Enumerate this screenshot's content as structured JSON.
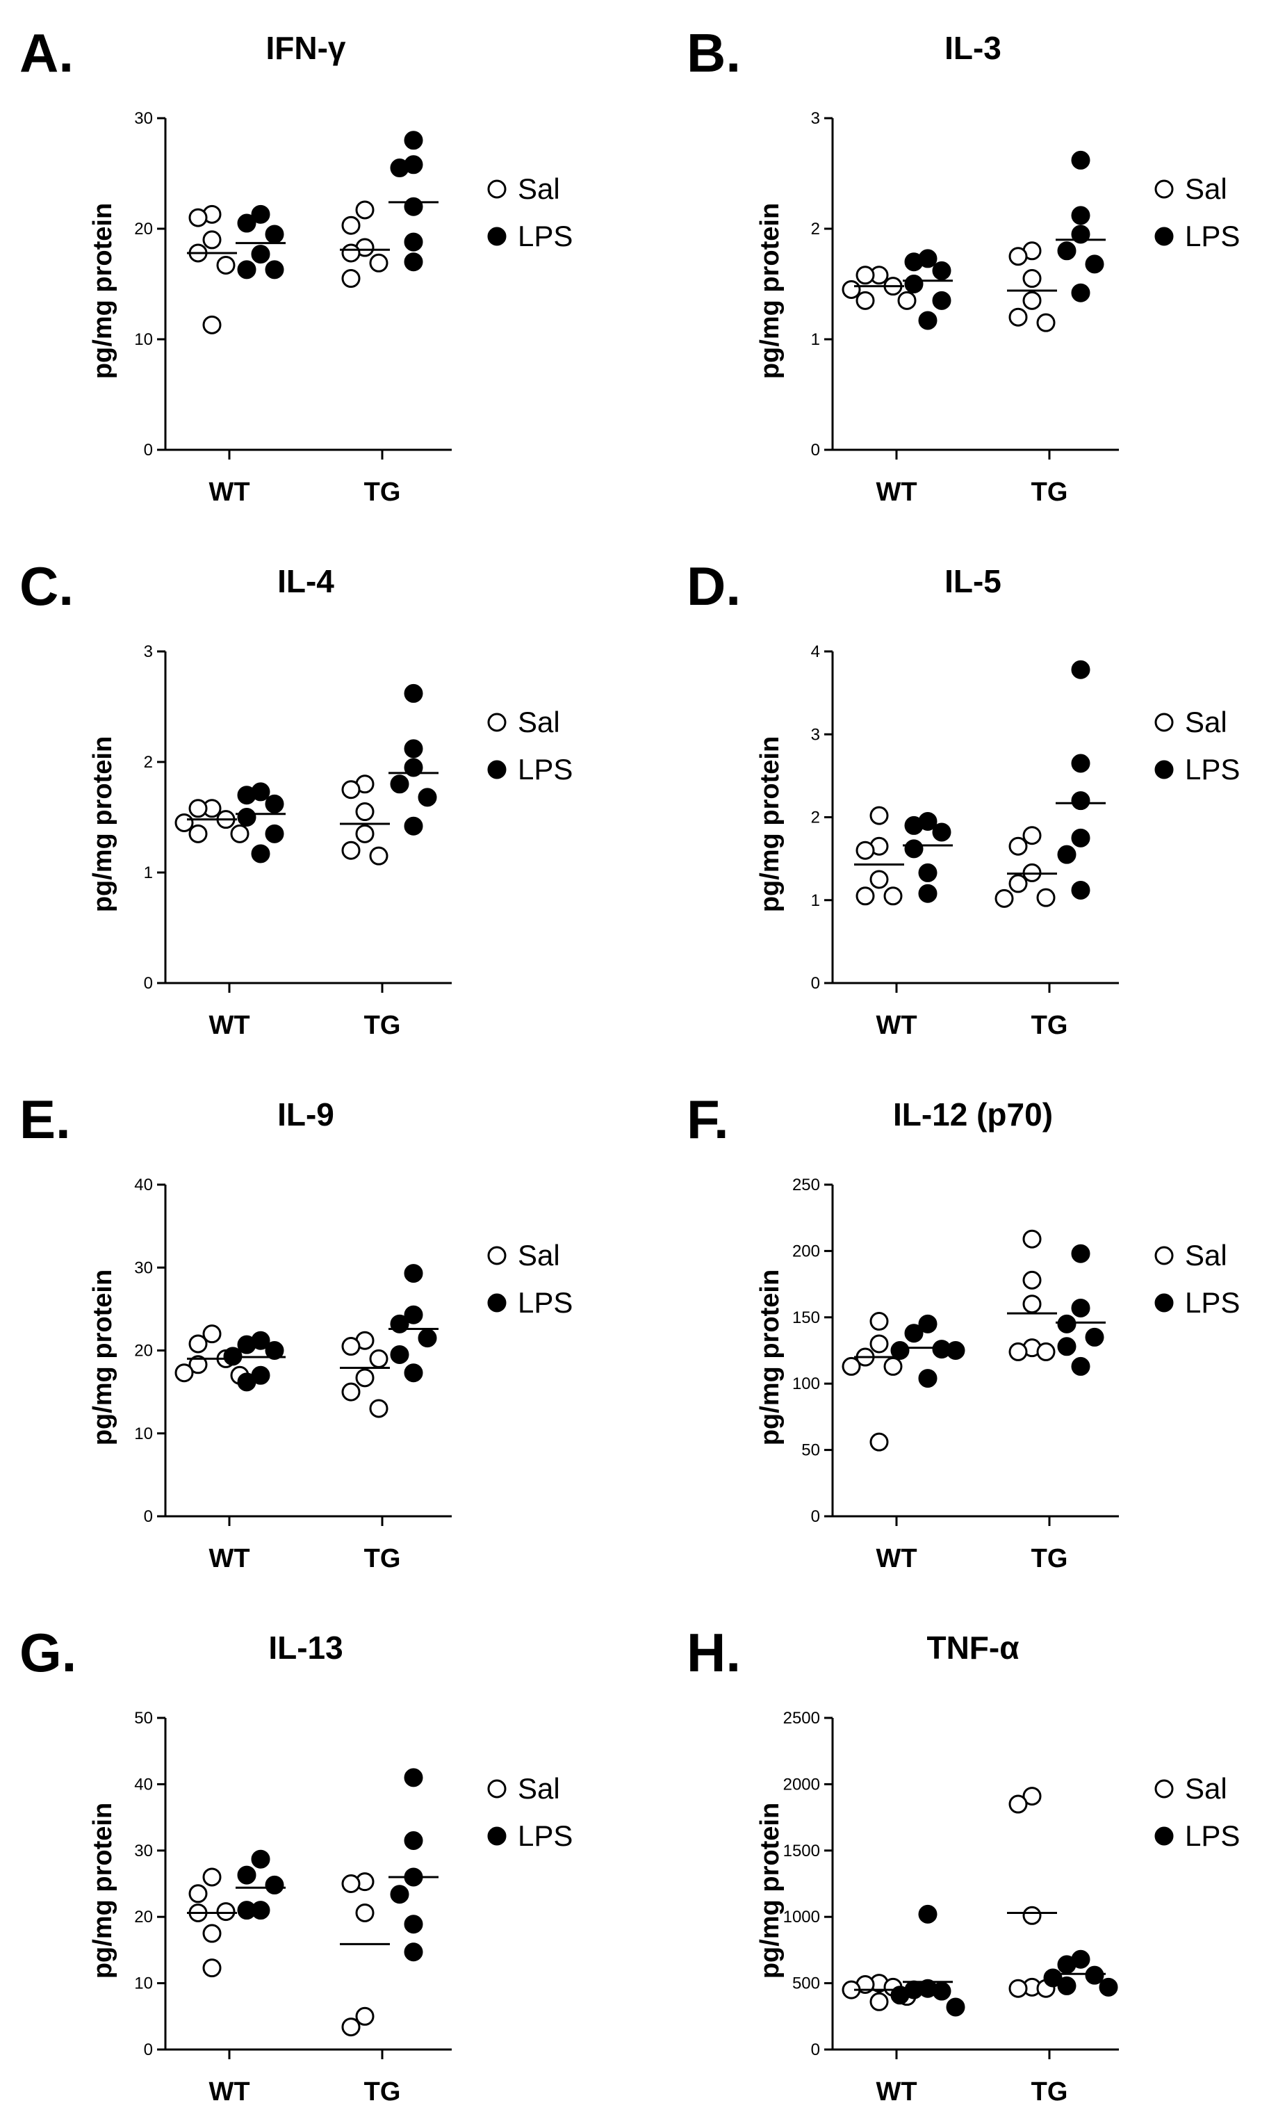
{
  "figure": {
    "legend": {
      "sal_label": "Sal",
      "lps_label": "LPS"
    },
    "y_axis_label": "pg/mg protein"
  },
  "chart_data": [
    {
      "letter": "A.",
      "title": "IFN-γ",
      "type": "scatter",
      "categories": [
        "WT",
        "TG"
      ],
      "ylabel": "pg/mg protein",
      "yticks": [
        0,
        10,
        20,
        30
      ],
      "ylim": [
        0,
        30
      ],
      "series": [
        {
          "name": "Sal",
          "style": "open",
          "WT": {
            "points": [
              21.0,
              21.3,
              19.0,
              17.8,
              16.7,
              11.3
            ],
            "mean": 17.8
          },
          "TG": {
            "points": [
              21.7,
              20.3,
              18.3,
              17.8,
              16.9,
              15.5
            ],
            "mean": 18.1
          }
        },
        {
          "name": "LPS",
          "style": "filled",
          "WT": {
            "points": [
              21.3,
              20.5,
              19.5,
              17.7,
              16.3,
              16.3
            ],
            "mean": 18.7
          },
          "TG": {
            "points": [
              28.0,
              25.8,
              25.5,
              22.0,
              18.8,
              17.0
            ],
            "mean": 22.4
          }
        }
      ]
    },
    {
      "letter": "B.",
      "title": "IL-3",
      "type": "scatter",
      "categories": [
        "WT",
        "TG"
      ],
      "ylabel": "pg/mg protein",
      "yticks": [
        0,
        1,
        2,
        3
      ],
      "ylim": [
        0,
        3
      ],
      "series": [
        {
          "name": "Sal",
          "style": "open",
          "WT": {
            "points": [
              1.58,
              1.58,
              1.48,
              1.45,
              1.35,
              1.35
            ],
            "mean": 1.48
          },
          "TG": {
            "points": [
              1.8,
              1.75,
              1.55,
              1.35,
              1.2,
              1.15
            ],
            "mean": 1.44
          }
        },
        {
          "name": "LPS",
          "style": "filled",
          "WT": {
            "points": [
              1.73,
              1.7,
              1.62,
              1.5,
              1.35,
              1.17
            ],
            "mean": 1.53
          },
          "TG": {
            "points": [
              2.62,
              2.12,
              1.95,
              1.8,
              1.68,
              1.42
            ],
            "mean": 1.9
          }
        }
      ]
    },
    {
      "letter": "C.",
      "title": "IL-4",
      "type": "scatter",
      "categories": [
        "WT",
        "TG"
      ],
      "ylabel": "pg/mg protein",
      "yticks": [
        0,
        1,
        2,
        3
      ],
      "ylim": [
        0,
        3
      ],
      "series": [
        {
          "name": "Sal",
          "style": "open",
          "WT": {
            "points": [
              1.58,
              1.58,
              1.48,
              1.45,
              1.35,
              1.35
            ],
            "mean": 1.48
          },
          "TG": {
            "points": [
              1.8,
              1.75,
              1.55,
              1.35,
              1.2,
              1.15
            ],
            "mean": 1.44
          }
        },
        {
          "name": "LPS",
          "style": "filled",
          "WT": {
            "points": [
              1.73,
              1.7,
              1.62,
              1.5,
              1.35,
              1.17
            ],
            "mean": 1.53
          },
          "TG": {
            "points": [
              2.62,
              2.12,
              1.95,
              1.8,
              1.68,
              1.42
            ],
            "mean": 1.9
          }
        }
      ]
    },
    {
      "letter": "D.",
      "title": "IL-5",
      "type": "scatter",
      "categories": [
        "WT",
        "TG"
      ],
      "ylabel": "pg/mg protein",
      "yticks": [
        0,
        1,
        2,
        3,
        4
      ],
      "ylim": [
        0,
        4
      ],
      "series": [
        {
          "name": "Sal",
          "style": "open",
          "WT": {
            "points": [
              2.02,
              1.65,
              1.6,
              1.25,
              1.05,
              1.05
            ],
            "mean": 1.43
          },
          "TG": {
            "points": [
              1.78,
              1.65,
              1.33,
              1.2,
              1.03,
              1.02
            ],
            "mean": 1.32
          }
        },
        {
          "name": "LPS",
          "style": "filled",
          "WT": {
            "points": [
              1.95,
              1.9,
              1.82,
              1.62,
              1.33,
              1.08
            ],
            "mean": 1.66
          },
          "TG": {
            "points": [
              3.78,
              2.65,
              2.2,
              1.75,
              1.55,
              1.12
            ],
            "mean": 2.17
          }
        }
      ]
    },
    {
      "letter": "E.",
      "title": "IL-9",
      "type": "scatter",
      "categories": [
        "WT",
        "TG"
      ],
      "ylabel": "pg/mg protein",
      "yticks": [
        0,
        10,
        20,
        30,
        40
      ],
      "ylim": [
        0,
        40
      ],
      "series": [
        {
          "name": "Sal",
          "style": "open",
          "WT": {
            "points": [
              22.0,
              20.8,
              19.0,
              18.3,
              17.3,
              17.0
            ],
            "mean": 19.0
          },
          "TG": {
            "points": [
              21.2,
              20.5,
              19.0,
              16.7,
              15.0,
              13.0
            ],
            "mean": 17.9
          }
        },
        {
          "name": "LPS",
          "style": "filled",
          "WT": {
            "points": [
              21.2,
              20.7,
              20.0,
              19.3,
              17.0,
              16.2
            ],
            "mean": 19.2
          },
          "TG": {
            "points": [
              29.3,
              24.3,
              23.2,
              21.5,
              19.5,
              17.3
            ],
            "mean": 22.6
          }
        }
      ]
    },
    {
      "letter": "F.",
      "title": "IL-12 (p70)",
      "type": "scatter",
      "categories": [
        "WT",
        "TG"
      ],
      "ylabel": "pg/mg protein",
      "yticks": [
        0,
        50,
        100,
        150,
        200,
        250
      ],
      "ylim": [
        0,
        250
      ],
      "series": [
        {
          "name": "Sal",
          "style": "open",
          "WT": {
            "points": [
              147,
              130,
              120,
              113,
              113,
              56
            ],
            "mean": 120
          },
          "TG": {
            "points": [
              209,
              178,
              160,
              127,
              124,
              124
            ],
            "mean": 153
          }
        },
        {
          "name": "LPS",
          "style": "filled",
          "WT": {
            "points": [
              145,
              138,
              126,
              125,
              125,
              104
            ],
            "mean": 127
          },
          "TG": {
            "points": [
              198,
              157,
              145,
              135,
              128,
              113
            ],
            "mean": 146
          }
        }
      ]
    },
    {
      "letter": "G.",
      "title": "IL-13",
      "type": "scatter",
      "categories": [
        "WT",
        "TG"
      ],
      "ylabel": "pg/mg protein",
      "yticks": [
        0,
        10,
        20,
        30,
        40,
        50
      ],
      "ylim": [
        0,
        50
      ],
      "series": [
        {
          "name": "Sal",
          "style": "open",
          "WT": {
            "points": [
              26.0,
              23.5,
              20.8,
              20.6,
              17.5,
              12.3
            ],
            "mean": 20.6
          },
          "TG": {
            "points": [
              25.3,
              25.0,
              20.6,
              5.0,
              3.4
            ],
            "mean": 15.9
          }
        },
        {
          "name": "LPS",
          "style": "filled",
          "WT": {
            "points": [
              28.7,
              26.3,
              24.8,
              21.0,
              21.0
            ],
            "mean": 24.4
          },
          "TG": {
            "points": [
              41.0,
              31.5,
              26.0,
              23.4,
              18.9,
              14.7
            ],
            "mean": 26.0
          }
        }
      ]
    },
    {
      "letter": "H.",
      "title": "TNF-α",
      "type": "scatter",
      "categories": [
        "WT",
        "TG"
      ],
      "ylabel": "pg/mg protein",
      "yticks": [
        0,
        500,
        1000,
        1500,
        2000,
        2500
      ],
      "ylim": [
        0,
        2500
      ],
      "series": [
        {
          "name": "Sal",
          "style": "open",
          "WT": {
            "points": [
              500,
              490,
              470,
              450,
              400,
              360
            ],
            "mean": 450
          },
          "TG": {
            "points": [
              1910,
              1850,
              1010,
              470,
              460,
              460
            ],
            "mean": 1030
          }
        },
        {
          "name": "LPS",
          "style": "filled",
          "WT": {
            "points": [
              1020,
              460,
              450,
              440,
              410,
              320
            ],
            "mean": 510
          },
          "TG": {
            "points": [
              680,
              640,
              560,
              540,
              480,
              470
            ],
            "mean": 570
          }
        }
      ]
    }
  ]
}
